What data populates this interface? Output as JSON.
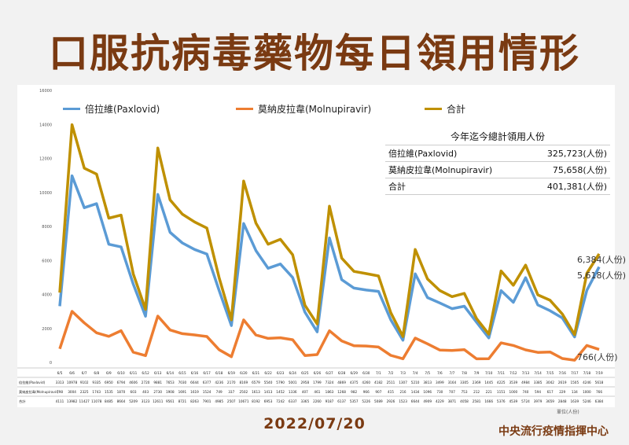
{
  "title": "口服抗病毒藥物每日領用情形",
  "date": "2022/07/20",
  "org": "中央流行疫情指揮中心",
  "unit_note": "單位(人份)",
  "colors": {
    "paxlovid": "#5b9bd5",
    "molnupiravir": "#ed7d31",
    "total": "#bf9000"
  },
  "summary": {
    "header": "今年迄今總計領用人份",
    "rows": [
      {
        "label": "倍拉維(Paxlovid)",
        "value": "325,723(人份)"
      },
      {
        "label": "莫納皮拉韋(Molnupiravir)",
        "value": "75,658(人份)"
      },
      {
        "label": "合計",
        "value": "401,381(人份)"
      }
    ]
  },
  "end_labels": {
    "total": "6,384(人份)",
    "paxlovid": "5,618(人份)",
    "molnupiravir": "766(人份)"
  },
  "chart_data": {
    "type": "line",
    "title": "口服抗病毒藥物每日領用情形",
    "ylim": [
      0,
      16000
    ],
    "yticks": [
      0,
      2000,
      4000,
      6000,
      8000,
      10000,
      12000,
      14000,
      16000
    ],
    "grid": false,
    "legend_position": "top",
    "categories": [
      "6/5",
      "6/6",
      "6/7",
      "6/8",
      "6/9",
      "6/10",
      "6/11",
      "6/12",
      "6/13",
      "6/14",
      "6/15",
      "6/16",
      "6/17",
      "6/18",
      "6/19",
      "6/20",
      "6/21",
      "6/22",
      "6/23",
      "6/24",
      "6/25",
      "6/26",
      "6/27",
      "6/28",
      "6/29",
      "6/30",
      "7/1",
      "7/2",
      "7/3",
      "7/4",
      "7/5",
      "7/6",
      "7/7",
      "7/8",
      "7/9",
      "7/10",
      "7/11",
      "7/12",
      "7/13",
      "7/14",
      "7/15",
      "7/16",
      "7/17",
      "7/18",
      "7/19"
    ],
    "series": [
      {
        "name": "倍拉維(Paxlovid)",
        "key": "paxlovid",
        "values": [
          3313,
          10978,
          9102,
          9335,
          6950,
          6794,
          4606,
          2720,
          9881,
          7653,
          7030,
          6644,
          6377,
          4236,
          2170,
          8169,
          6579,
          5540,
          5790,
          5001,
          2958,
          1799,
          7324,
          4869,
          4375,
          4260,
          4182,
          2511,
          1307,
          5210,
          3813,
          3499,
          3164,
          3305,
          2369,
          1445,
          4225,
          3539,
          4984,
          3385,
          3042,
          2619,
          1505,
          4246,
          5618
        ]
      },
      {
        "name": "莫納皮拉韋(Molnupiravir)",
        "key": "molnupiravir",
        "values": [
          798,
          3004,
          2325,
          1743,
          1535,
          1870,
          603,
          403,
          2730,
          1908,
          1691,
          1619,
          1524,
          749,
          337,
          2502,
          1613,
          1413,
          1452,
          1336,
          407,
          461,
          1863,
          1268,
          982,
          966,
          907,
          415,
          216,
          1434,
          1096,
          730,
          707,
          753,
          212,
          221,
          1151,
          1000,
          740,
          594,
          617,
          229,
          134,
          1000,
          766
        ]
      },
      {
        "name": "合計",
        "key": "total",
        "values": [
          4111,
          13982,
          11427,
          11078,
          8485,
          8664,
          5209,
          3123,
          12611,
          9561,
          8721,
          8263,
          7901,
          4985,
          2507,
          10671,
          8192,
          6953,
          7242,
          6337,
          3365,
          2260,
          9187,
          6137,
          5357,
          5226,
          5089,
          2926,
          1523,
          6644,
          4909,
          4229,
          3871,
          4058,
          2581,
          1666,
          5376,
          4539,
          5724,
          3979,
          3659,
          2848,
          1639,
          5246,
          6384
        ]
      }
    ]
  }
}
